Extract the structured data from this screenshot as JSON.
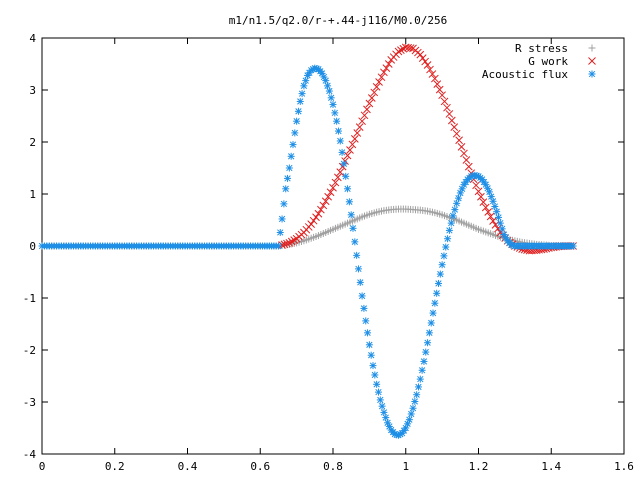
{
  "chart_data": {
    "type": "scatter",
    "title": "m1/n1.5/q2.0/r-+.44-j116/M0.0/256",
    "xlabel": "",
    "ylabel": "",
    "xlim": [
      0,
      1.6
    ],
    "ylim": [
      -4,
      4
    ],
    "x_ticks": [
      "0",
      "0.2",
      "0.4",
      "0.6",
      "0.8",
      "1",
      "1.2",
      "1.4",
      "1.6"
    ],
    "y_ticks": [
      "4",
      "3",
      "2",
      "1",
      "0",
      "-1",
      "-2",
      "-3",
      "-4"
    ],
    "grid": false,
    "legend_position": "top-right",
    "series": [
      {
        "name": "R stress",
        "marker": "plus",
        "color": "#a0a0a0",
        "x": [
          0.0,
          0.1,
          0.2,
          0.3,
          0.4,
          0.5,
          0.6,
          0.65,
          0.66,
          0.68,
          0.7,
          0.72,
          0.74,
          0.76,
          0.78,
          0.8,
          0.82,
          0.84,
          0.86,
          0.88,
          0.9,
          0.92,
          0.94,
          0.96,
          0.98,
          1.0,
          1.02,
          1.04,
          1.06,
          1.08,
          1.1,
          1.12,
          1.14,
          1.16,
          1.18,
          1.2,
          1.22,
          1.24,
          1.26,
          1.28,
          1.3,
          1.32,
          1.34,
          1.36,
          1.38,
          1.4,
          1.42,
          1.44,
          1.46
        ],
        "y": [
          0,
          0,
          0,
          0,
          0,
          0,
          0,
          0,
          0.01,
          0.03,
          0.06,
          0.1,
          0.15,
          0.2,
          0.26,
          0.32,
          0.38,
          0.44,
          0.5,
          0.56,
          0.61,
          0.65,
          0.68,
          0.7,
          0.71,
          0.71,
          0.7,
          0.69,
          0.67,
          0.64,
          0.6,
          0.55,
          0.5,
          0.44,
          0.38,
          0.32,
          0.27,
          0.22,
          0.17,
          0.13,
          0.1,
          0.07,
          0.05,
          0.03,
          0.02,
          0.01,
          0.01,
          0,
          0
        ]
      },
      {
        "name": "G work",
        "marker": "cross",
        "color": "#e02020",
        "x": [
          0.66,
          0.68,
          0.7,
          0.72,
          0.74,
          0.76,
          0.78,
          0.8,
          0.82,
          0.84,
          0.86,
          0.88,
          0.9,
          0.92,
          0.94,
          0.96,
          0.98,
          1.0,
          1.02,
          1.04,
          1.06,
          1.08,
          1.1,
          1.12,
          1.14,
          1.16,
          1.18,
          1.2,
          1.22,
          1.24,
          1.26,
          1.28,
          1.3,
          1.32,
          1.34,
          1.36,
          1.38,
          1.4,
          1.42,
          1.44,
          1.46
        ],
        "y": [
          0.02,
          0.06,
          0.14,
          0.26,
          0.42,
          0.62,
          0.86,
          1.12,
          1.42,
          1.74,
          2.06,
          2.4,
          2.74,
          3.06,
          3.34,
          3.58,
          3.74,
          3.82,
          3.8,
          3.68,
          3.48,
          3.22,
          2.9,
          2.54,
          2.16,
          1.78,
          1.4,
          1.05,
          0.74,
          0.48,
          0.26,
          0.1,
          0.0,
          -0.06,
          -0.09,
          -0.08,
          -0.06,
          -0.03,
          -0.01,
          0.0,
          0.0
        ]
      },
      {
        "name": "Acoustic flux",
        "marker": "star",
        "color": "#1e8fe6",
        "x": [
          0.0,
          0.1,
          0.2,
          0.3,
          0.4,
          0.5,
          0.6,
          0.65,
          0.66,
          0.67,
          0.68,
          0.69,
          0.7,
          0.71,
          0.72,
          0.73,
          0.74,
          0.75,
          0.76,
          0.77,
          0.78,
          0.79,
          0.8,
          0.81,
          0.82,
          0.83,
          0.84,
          0.85,
          0.86,
          0.87,
          0.88,
          0.89,
          0.9,
          0.91,
          0.92,
          0.93,
          0.94,
          0.95,
          0.96,
          0.97,
          0.98,
          0.99,
          1.0,
          1.01,
          1.02,
          1.03,
          1.04,
          1.05,
          1.06,
          1.07,
          1.08,
          1.09,
          1.1,
          1.11,
          1.12,
          1.13,
          1.14,
          1.15,
          1.16,
          1.17,
          1.18,
          1.19,
          1.2,
          1.21,
          1.22,
          1.23,
          1.24,
          1.25,
          1.26,
          1.27,
          1.28,
          1.29,
          1.3,
          1.31,
          1.32,
          1.33,
          1.34,
          1.35,
          1.36,
          1.37,
          1.38,
          1.39,
          1.4,
          1.41,
          1.42,
          1.43,
          1.44,
          1.45,
          1.46
        ],
        "y": [
          0,
          0,
          0,
          0,
          0,
          0,
          0,
          0,
          0.52,
          1.1,
          1.5,
          1.95,
          2.4,
          2.78,
          3.08,
          3.28,
          3.38,
          3.42,
          3.4,
          3.32,
          3.18,
          2.98,
          2.72,
          2.4,
          2.02,
          1.58,
          1.1,
          0.6,
          0.08,
          -0.44,
          -0.96,
          -1.44,
          -1.9,
          -2.3,
          -2.66,
          -2.96,
          -3.2,
          -3.4,
          -3.54,
          -3.62,
          -3.64,
          -3.6,
          -3.5,
          -3.34,
          -3.12,
          -2.86,
          -2.56,
          -2.22,
          -1.86,
          -1.48,
          -1.1,
          -0.72,
          -0.36,
          -0.02,
          0.3,
          0.58,
          0.82,
          1.02,
          1.18,
          1.28,
          1.34,
          1.36,
          1.34,
          1.28,
          1.18,
          1.04,
          0.86,
          0.66,
          0.44,
          0.22,
          0.1,
          0.02,
          0.0,
          0.0,
          0.0,
          0.0,
          0.0,
          0.0,
          0.0,
          0.0,
          0.0,
          0.0,
          0.0,
          0.0,
          0.0,
          0.0,
          0.0,
          0.0,
          0.0
        ]
      }
    ]
  }
}
